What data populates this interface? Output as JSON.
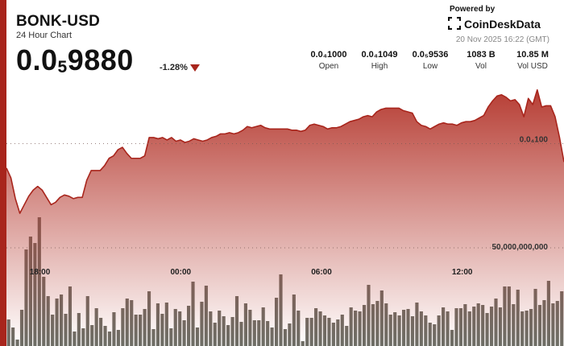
{
  "header": {
    "title": "BONK-USD",
    "subtitle": "24 Hour Chart",
    "price_main": "0.0",
    "price_sub": "5",
    "price_rest": "9880",
    "change": "-1.28%",
    "powered_by": "Powered by",
    "brand": "CoinDeskData",
    "timestamp": "20 Nov 2025 16:22 (GMT)"
  },
  "stats": [
    {
      "value": "0.0₄1000",
      "label": "Open"
    },
    {
      "value": "0.0₄1049",
      "label": "High"
    },
    {
      "value": "0.0₅9536",
      "label": "Low"
    },
    {
      "value": "1083 B",
      "label": "Vol"
    },
    {
      "value": "10.85 M",
      "label": "Vol USD"
    }
  ],
  "colors": {
    "accent": "#a8251c",
    "line": "#a8251c",
    "area_top": "#b3342a",
    "volume_bar": "#6e6e66",
    "down_arrow": "#a8251c"
  },
  "icons": {
    "change_direction": "down-triangle-icon",
    "brand_logo": "coindesk-logo-icon"
  },
  "chart_data": {
    "type": "area",
    "series": [
      {
        "values": [
          9.8e-05,
          9.72e-05,
          9.55e-05,
          9.43e-05,
          9.5e-05,
          9.57e-05,
          9.62e-05,
          9.65e-05,
          9.62e-05,
          9.56e-05,
          9.5e-05,
          9.52e-05,
          9.56e-05,
          9.58e-05,
          9.57e-05,
          9.55e-05,
          9.56e-05,
          9.56e-05,
          9.7e-05,
          9.78e-05,
          9.78e-05,
          9.78e-05,
          9.82e-05,
          9.88e-05,
          9.9e-05,
          9.95e-05,
          9.97e-05,
          9.92e-05,
          9.88e-05,
          9.88e-05,
          9.88e-05,
          9.9e-05,
          0.0001005,
          0.0001005,
          0.0001004,
          0.0001005,
          0.0001003,
          0.0001005,
          0.0001002,
          0.0001003,
          0.0001001,
          0.0001002,
          0.0001004,
          0.0001003,
          0.0001002,
          0.0001003,
          0.0001005,
          0.0001006,
          0.0001008,
          0.0001008,
          0.0001009,
          0.0001008,
          0.0001009,
          0.0001011,
          0.0001014,
          0.0001013,
          0.0001014,
          0.0001015,
          0.0001013,
          0.0001012,
          0.0001012,
          0.0001012,
          0.0001012,
          0.0001012,
          0.0001011,
          0.0001011,
          0.000101,
          0.0001011,
          0.0001015,
          0.0001016,
          0.0001015,
          0.0001014,
          0.0001012,
          0.0001013,
          0.0001013,
          0.0001014,
          0.0001016,
          0.0001018,
          0.0001019,
          0.000102,
          0.0001022,
          0.0001023,
          0.0001022,
          0.0001026,
          0.0001028,
          0.0001029,
          0.0001029,
          0.0001029,
          0.0001029,
          0.0001027,
          0.0001026,
          0.0001025,
          0.0001018,
          0.0001015,
          0.0001014,
          0.0001012,
          0.0001014,
          0.0001016,
          0.0001017,
          0.0001016,
          0.0001016,
          0.0001015,
          0.0001017,
          0.0001018,
          0.0001018,
          0.0001019,
          0.0001021,
          0.0001023,
          0.000103,
          0.0001035,
          0.0001039,
          0.000104,
          0.0001038,
          0.0001035,
          0.0001036,
          0.0001032,
          0.0001022,
          0.0001037,
          0.0001032,
          0.0001044,
          0.000103,
          0.0001031,
          0.0001031,
          0.0001022,
          0.0001005,
          9.85e-05
        ]
      }
    ],
    "volume": [
      33,
      23,
      8,
      45,
      120,
      136,
      128,
      160,
      86,
      62,
      39,
      59,
      64,
      40,
      74,
      18,
      41,
      22,
      62,
      26,
      47,
      35,
      25,
      18,
      42,
      20,
      47,
      59,
      57,
      39,
      39,
      46,
      68,
      21,
      53,
      40,
      54,
      22,
      46,
      43,
      32,
      50,
      80,
      23,
      55,
      75,
      43,
      29,
      44,
      37,
      26,
      36,
      62,
      30,
      53,
      45,
      32,
      32,
      48,
      31,
      23,
      60,
      89,
      21,
      28,
      64,
      44,
      6,
      35,
      35,
      47,
      43,
      38,
      35,
      29,
      33,
      39,
      25,
      48,
      44,
      43,
      51,
      76,
      52,
      56,
      69,
      53,
      39,
      42,
      38,
      45,
      46,
      37,
      54,
      43,
      38,
      29,
      27,
      38,
      48,
      43,
      20,
      47,
      47,
      52,
      43,
      49,
      53,
      51,
      41,
      49,
      59,
      48,
      74,
      74,
      52,
      70,
      43,
      44,
      46,
      71,
      51,
      57,
      81,
      53,
      56,
      68
    ]
  },
  "axis": {
    "x_ticks": [
      {
        "label": "18:00",
        "pos": 0.06
      },
      {
        "label": "00:00",
        "pos": 0.3125
      },
      {
        "label": "06:00",
        "pos": 0.565
      },
      {
        "label": "12:00",
        "pos": 0.8175
      }
    ],
    "price_level": 0.0001,
    "price_level_label": "0.0₄100",
    "volume_level": 50000000000,
    "volume_level_label": "50,000,000,000"
  }
}
